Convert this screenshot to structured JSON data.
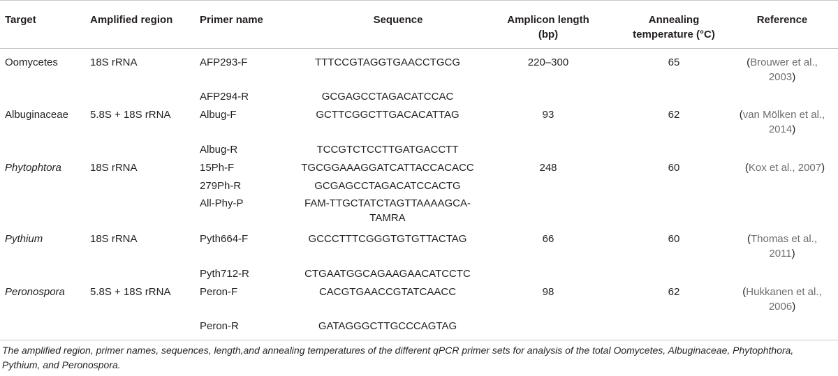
{
  "table": {
    "headers": {
      "target": "Target",
      "region": "Amplified region",
      "primer": "Primer name",
      "sequence": "Sequence",
      "amplicon_l1": "Amplicon length",
      "amplicon_l2": "(bp)",
      "annealing_l1": "Annealing",
      "annealing_l2": "temperature (°C)",
      "reference": "Reference"
    },
    "rows": [
      {
        "target": "Oomycetes",
        "region": "18S rRNA",
        "primer": "AFP293-F",
        "sequence": "TTTCCGTAGGTGAACCTGCG",
        "length": "220–300",
        "temp": "65",
        "ref_l1": "Brouwer et al.,",
        "ref_l2": "2003"
      },
      {
        "primer": "AFP294-R",
        "sequence": "GCGAGCCTAGACATCCAC"
      },
      {
        "target": "Albuginaceae",
        "region": "5.8S + 18S rRNA",
        "primer": "Albug-F",
        "sequence": "GCTTCGGCTTGACACATTAG",
        "length": "93",
        "temp": "62",
        "ref_l1": "van Mölken et al.,",
        "ref_l2": "2014"
      },
      {
        "primer": "Albug-R",
        "sequence": "TCCGTCTCCTTGATGACCTT"
      },
      {
        "target": "Phytophtora",
        "region": "18S rRNA",
        "primer": "15Ph-F",
        "sequence": "TGCGGAAAGGATCATTACCACACC",
        "length": "248",
        "temp": "60",
        "ref_l1": "Kox et al., 2007"
      },
      {
        "primer": "279Ph-R",
        "sequence": "GCGAGCCTAGACATCCACTG"
      },
      {
        "primer": "All-Phy-P",
        "sequence_l1": "FAM-TTGCTATCTAGTTAAAAGCA-",
        "sequence_l2": "TAMRA"
      },
      {
        "target": "Pythium",
        "region": "18S rRNA",
        "primer": "Pyth664-F",
        "sequence": "GCCCTTTCGGGTGTGTTACTAG",
        "length": "66",
        "temp": "60",
        "ref_l1": "Thomas et al.,",
        "ref_l2": "2011"
      },
      {
        "primer": "Pyth712-R",
        "sequence": "CTGAATGGCAGAAGAACATCCTC"
      },
      {
        "target": "Peronospora",
        "region": "5.8S + 18S rRNA",
        "primer": "Peron-F",
        "sequence": "CACGTGAACCGTATCAACC",
        "length": "98",
        "temp": "62",
        "ref_l1": "Hukkanen et al.,",
        "ref_l2": "2006"
      },
      {
        "primer": "Peron-R",
        "sequence": "GATAGGGCTTGCCCAGTAG"
      }
    ],
    "paren_open": "(",
    "paren_close": ")"
  },
  "caption": {
    "text": "The amplified region, primer names, sequences, length,and annealing temperatures of the different qPCR primer sets for analysis of the total Oomycetes, Albuginaceae, Phytophthora, Pythium, and Peronospora."
  }
}
